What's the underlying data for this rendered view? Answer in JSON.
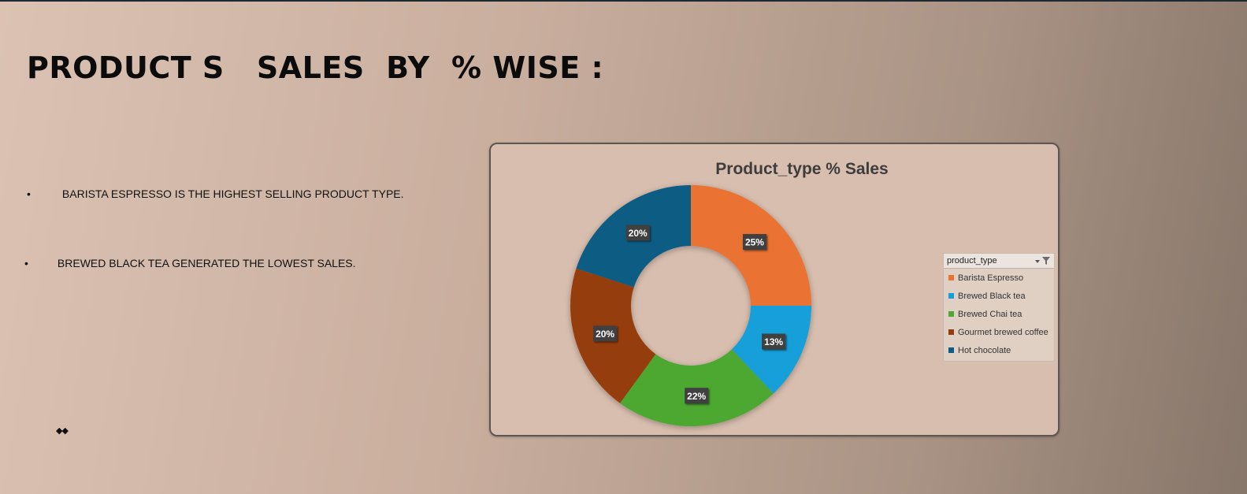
{
  "slide": {
    "title": "PRODUCT S   SALES  BY  % WISE :",
    "bullets": [
      "BARISTA ESPRESSO IS THE HIGHEST SELLING PRODUCT TYPE.",
      "BREWED BLACK TEA GENERATED THE LOWEST SALES."
    ],
    "bullet_symbol": "•",
    "diamonds": "◆◆"
  },
  "legend": {
    "field": "product_type"
  },
  "chart_data": {
    "type": "pie",
    "donut": true,
    "title": "Product_type % Sales",
    "categories": [
      "Barista Espresso",
      "Brewed Black tea",
      "Brewed Chai tea",
      "Gourmet brewed coffee",
      "Hot chocolate"
    ],
    "values": [
      25,
      13,
      22,
      20,
      20
    ],
    "data_labels": [
      "25%",
      "13%",
      "22%",
      "20%",
      "20%"
    ],
    "colors": [
      "#ea7233",
      "#139fd9",
      "#4ea831",
      "#963d10",
      "#0b5c84"
    ],
    "legend_position": "right"
  }
}
